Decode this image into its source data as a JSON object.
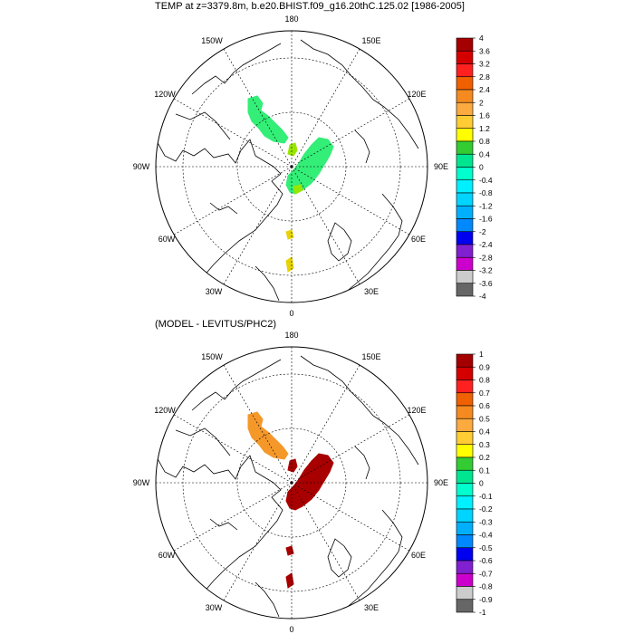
{
  "panels": [
    {
      "title": "TEMP at z=3379.8m, b.e20.BHIST.f09_g16.20thC.125.02 [1986-2005]",
      "longitude_labels": [
        "180",
        "150E",
        "120E",
        "90E",
        "60E",
        "30E",
        "0",
        "30W",
        "60W",
        "90W",
        "120W",
        "150W"
      ],
      "colorbar": {
        "ticks": [
          "4",
          "3.6",
          "3.2",
          "2.8",
          "2.4",
          "2",
          "1.6",
          "1.2",
          "0.8",
          "0.4",
          "0",
          "-0.4",
          "-0.8",
          "-1.2",
          "-1.6",
          "-2",
          "-2.4",
          "-2.8",
          "-3.2",
          "-3.6",
          "-4"
        ],
        "colors": [
          "#a50000",
          "#d40000",
          "#ff2020",
          "#f06000",
          "#f58a20",
          "#fbaa40",
          "#ffcc33",
          "#ffff00",
          "#33cc33",
          "#00e690",
          "#00ffcc",
          "#00f0ff",
          "#00d4ff",
          "#00b0ff",
          "#0088ff",
          "#0000f0",
          "#8020d0",
          "#cc00cc",
          "#cccccc",
          "#666666"
        ]
      },
      "blobs": [
        {
          "region": "canada-basin",
          "color": "#33ee77"
        },
        {
          "region": "eurasian-basin",
          "color": "#33ee77"
        },
        {
          "region": "lomonosov-spot",
          "color": "#99e600"
        },
        {
          "region": "fram-spot",
          "color": "#99e600"
        },
        {
          "region": "nordic-a",
          "color": "#e6d300"
        },
        {
          "region": "nordic-b",
          "color": "#e6d300"
        }
      ]
    },
    {
      "title": "(MODEL - LEVITUS/PHC2)",
      "longitude_labels": [
        "180",
        "150E",
        "120E",
        "90E",
        "60E",
        "30E",
        "0",
        "30W",
        "60W",
        "90W",
        "120W",
        "150W"
      ],
      "colorbar": {
        "ticks": [
          "1",
          "0.9",
          "0.8",
          "0.7",
          "0.6",
          "0.5",
          "0.4",
          "0.3",
          "0.2",
          "0.1",
          "0",
          "-0.1",
          "-0.2",
          "-0.3",
          "-0.4",
          "-0.5",
          "-0.6",
          "-0.7",
          "-0.8",
          "-0.9",
          "-1"
        ],
        "colors": [
          "#a50000",
          "#d40000",
          "#ff2020",
          "#f06000",
          "#f58a20",
          "#fbaa40",
          "#ffcc33",
          "#ffff00",
          "#33cc33",
          "#00e690",
          "#00ffcc",
          "#00f0ff",
          "#00d4ff",
          "#00b0ff",
          "#0088ff",
          "#0000f0",
          "#8020d0",
          "#cc00cc",
          "#cccccc",
          "#666666"
        ]
      },
      "blobs": [
        {
          "region": "canada-basin",
          "color": "#f5982a"
        },
        {
          "region": "eurasian-basin",
          "color": "#a80000"
        },
        {
          "region": "lomonosov-spot",
          "color": "#a80000"
        },
        {
          "region": "nordic-a",
          "color": "#a80000"
        },
        {
          "region": "nordic-b",
          "color": "#a80000"
        }
      ]
    }
  ]
}
